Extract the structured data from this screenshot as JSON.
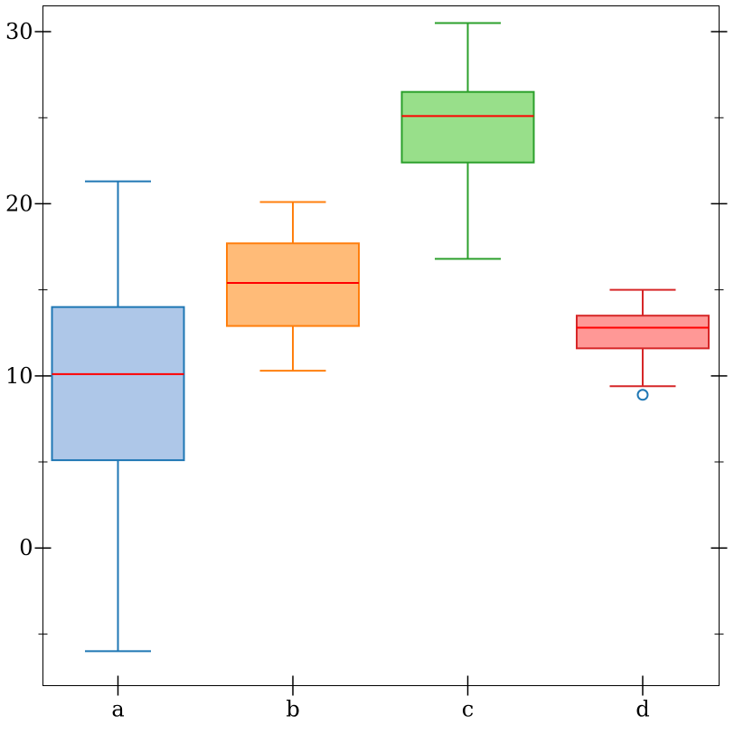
{
  "chart_data": {
    "type": "box",
    "title": "",
    "xlabel": "",
    "ylabel": "",
    "categories": [
      "a",
      "b",
      "c",
      "d"
    ],
    "ylim": [
      -8,
      31.5
    ],
    "y_ticks_major": [
      0,
      10,
      20,
      30
    ],
    "y_tick_labels": [
      "0",
      "10",
      "20",
      "30"
    ],
    "y_ticks_minor": [
      -5,
      5,
      15,
      25
    ],
    "grid": false,
    "legend": "none",
    "boxes": [
      {
        "category": "a",
        "whisker_low": -6.0,
        "q1": 5.1,
        "median": 10.1,
        "q3": 14.0,
        "whisker_high": 21.3,
        "outliers": [],
        "edge_color": "#1f77b4",
        "fill_color": "#aec7e8"
      },
      {
        "category": "b",
        "whisker_low": 10.3,
        "q1": 12.9,
        "median": 15.4,
        "q3": 17.7,
        "whisker_high": 20.1,
        "outliers": [],
        "edge_color": "#ff7f0e",
        "fill_color": "#ffbb78"
      },
      {
        "category": "c",
        "whisker_low": 16.8,
        "q1": 22.4,
        "median": 25.1,
        "q3": 26.5,
        "whisker_high": 30.5,
        "outliers": [],
        "edge_color": "#2ca02c",
        "fill_color": "#98df8a"
      },
      {
        "category": "d",
        "whisker_low": 9.4,
        "q1": 11.6,
        "median": 12.8,
        "q3": 13.5,
        "whisker_high": 15.0,
        "outliers": [
          8.9
        ],
        "edge_color": "#d62728",
        "fill_color": "#ff9896"
      }
    ],
    "median_color": "#ff0000",
    "outlier_color": "#1f77b4"
  }
}
